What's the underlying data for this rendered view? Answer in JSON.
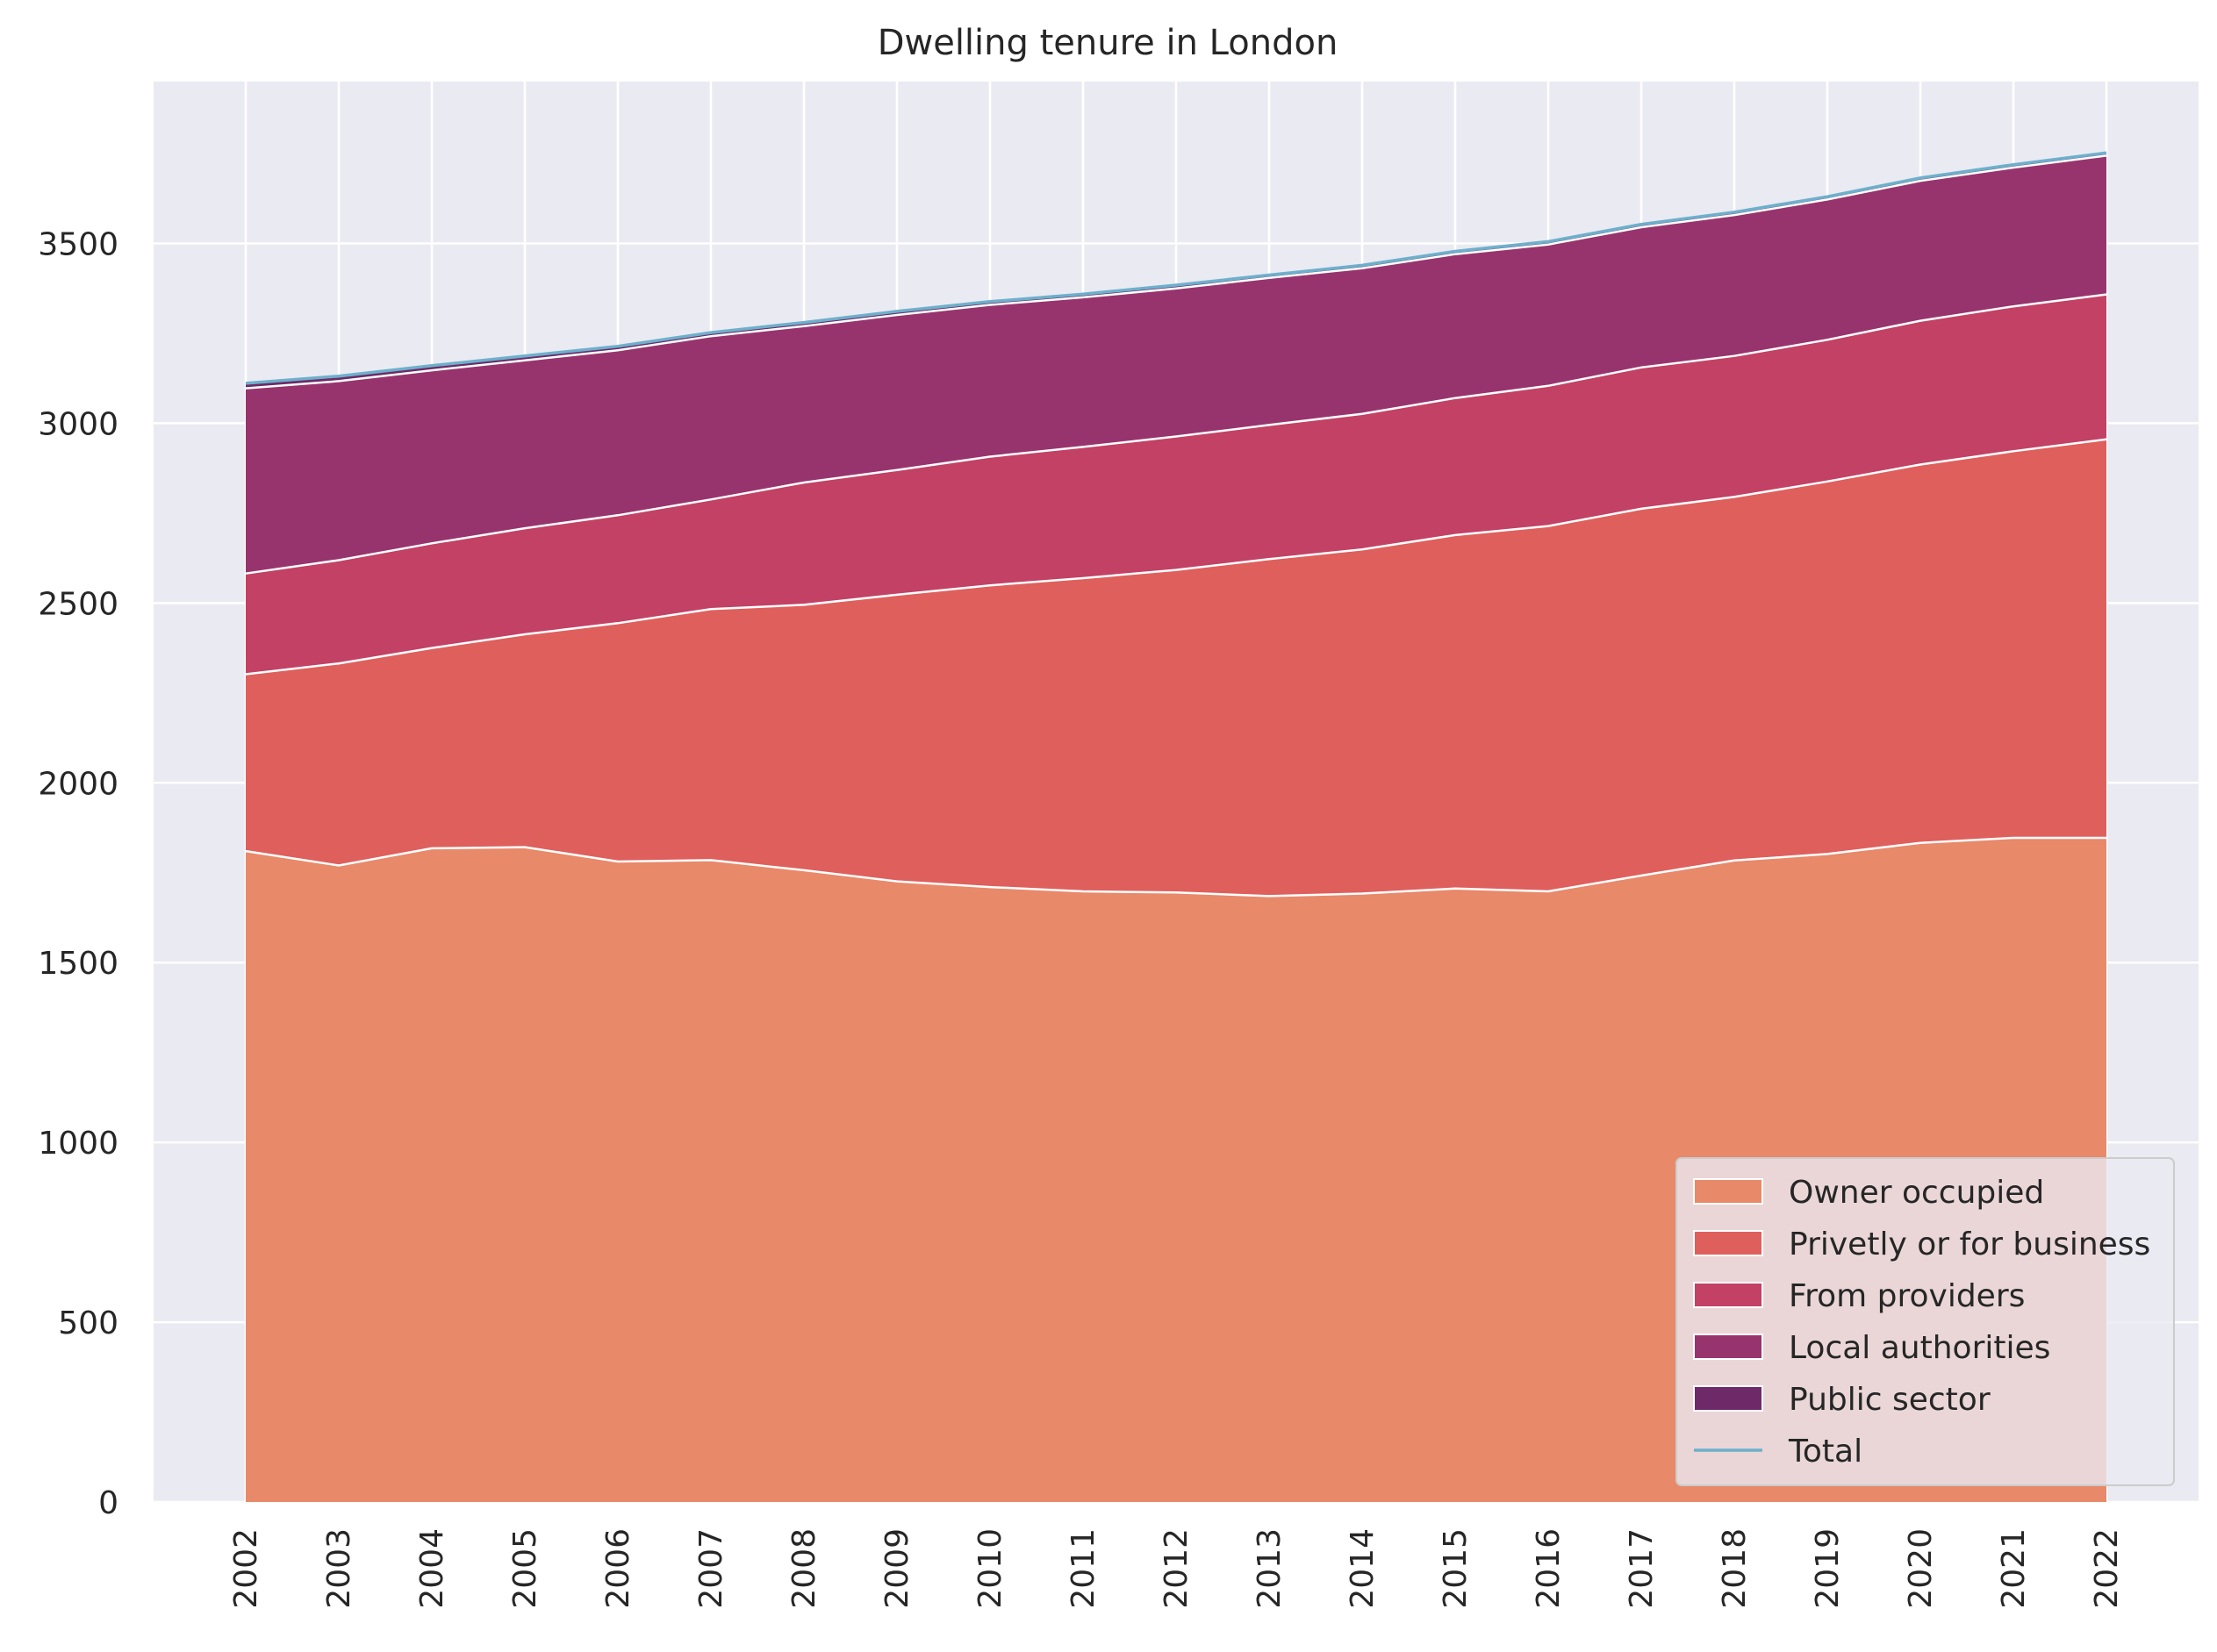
{
  "chart_data": {
    "type": "area",
    "title": "Dwelling tenure in London",
    "xlabel": "",
    "ylabel": "",
    "x": [
      2002,
      2003,
      2004,
      2005,
      2006,
      2007,
      2008,
      2009,
      2010,
      2011,
      2012,
      2013,
      2014,
      2015,
      2016,
      2017,
      2018,
      2019,
      2020,
      2021,
      2022
    ],
    "ylim": [
      0,
      3950
    ],
    "yticks": [
      0,
      500,
      1000,
      1500,
      2000,
      2500,
      3000,
      3500
    ],
    "grid": true,
    "legend_position": "bottom-right",
    "stacked": true,
    "series": [
      {
        "name": "Owner occupied",
        "color": "#e8896a",
        "values": [
          1810,
          1770,
          1818,
          1821,
          1781,
          1785,
          1757,
          1726,
          1710,
          1698,
          1695,
          1685,
          1692,
          1706,
          1698,
          1742,
          1784,
          1802,
          1833,
          1847,
          1847
        ]
      },
      {
        "name": "Privetly or for business",
        "color": "#df5f5c",
        "values": [
          492,
          562,
          557,
          592,
          663,
          698,
          738,
          797,
          839,
          871,
          897,
          937,
          957,
          983,
          1016,
          1020,
          1011,
          1036,
          1052,
          1075,
          1108
        ]
      },
      {
        "name": "From providers",
        "color": "#c24165",
        "values": [
          280,
          287,
          291,
          295,
          300,
          305,
          340,
          347,
          358,
          365,
          371,
          373,
          377,
          381,
          390,
          393,
          392,
          394,
          400,
          403,
          403
        ]
      },
      {
        "name": "Local authorities",
        "color": "#98346d",
        "values": [
          515,
          498,
          481,
          467,
          459,
          454,
          435,
          431,
          422,
          416,
          412,
          409,
          405,
          400,
          393,
          390,
          392,
          390,
          389,
          386,
          386
        ]
      },
      {
        "name": "Public sector",
        "color": "#6e2a68",
        "values": [
          14,
          14,
          13,
          12,
          11,
          10,
          10,
          10,
          9,
          9,
          9,
          8,
          8,
          8,
          8,
          8,
          8,
          8,
          8,
          8,
          8
        ]
      }
    ],
    "total": {
      "name": "Total",
      "color": "#6db0cb",
      "values": [
        3111,
        3131,
        3160,
        3187,
        3214,
        3252,
        3280,
        3311,
        3338,
        3359,
        3384,
        3412,
        3439,
        3478,
        3505,
        3553,
        3587,
        3630,
        3682,
        3719,
        3752
      ]
    }
  }
}
